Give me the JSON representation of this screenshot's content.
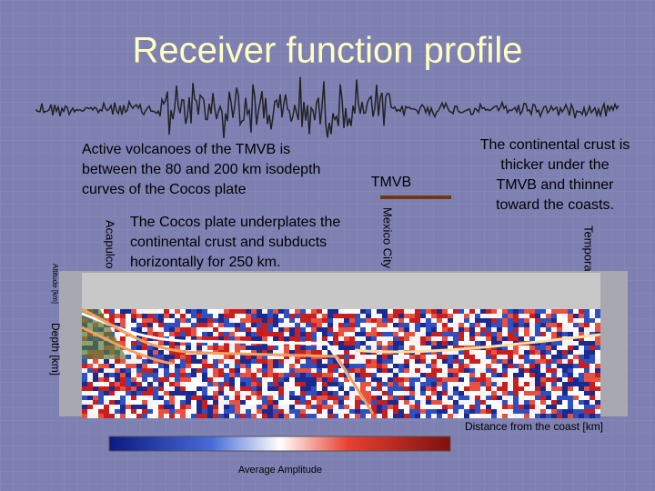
{
  "title": "Receiver function profile",
  "notes": {
    "volcanoes": [
      "Active volcanoes of the TMVB is",
      "between the 80 and 200 km isodepth",
      "curves of the Cocos plate"
    ],
    "crust": [
      "The continental crust is",
      "thicker under the",
      "TMVB and thinner",
      "toward the coasts."
    ],
    "cocos": [
      "The Cocos plate underplates the",
      "continental crust and subducts",
      "horizontally for  250 km."
    ],
    "tmvb": "TMVB"
  },
  "places": {
    "acapulco": "Acapulco",
    "mexico_city": "Mexico City",
    "temporal": "Temporal"
  },
  "figure": {
    "altitude_label": "Altitude [km]",
    "depth_label": "Depth [km]",
    "distance_label": "Distance from the coast [km]",
    "colorbar_label": "Average Amplitude"
  }
}
